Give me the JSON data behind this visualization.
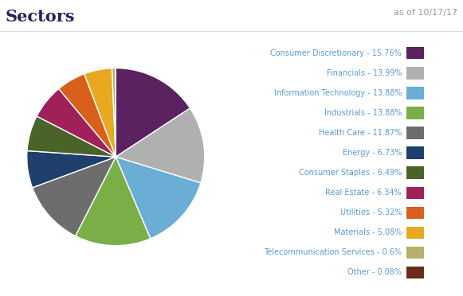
{
  "title": "Sectors",
  "subtitle": "as of 10/17/17",
  "sectors": [
    {
      "label": "Consumer Discretionary",
      "value": 15.76,
      "color": "#5C2161"
    },
    {
      "label": "Financials",
      "value": 13.99,
      "color": "#B0B0B0"
    },
    {
      "label": "Information Technology",
      "value": 13.88,
      "color": "#6AAED6"
    },
    {
      "label": "Industrials",
      "value": 13.88,
      "color": "#7AAE47"
    },
    {
      "label": "Health Care",
      "value": 11.87,
      "color": "#6D6D6D"
    },
    {
      "label": "Energy",
      "value": 6.73,
      "color": "#1F3F6D"
    },
    {
      "label": "Consumer Staples",
      "value": 6.49,
      "color": "#4A6329"
    },
    {
      "label": "Real Estate",
      "value": 6.34,
      "color": "#A0205A"
    },
    {
      "label": "Utilities",
      "value": 5.32,
      "color": "#D9601A"
    },
    {
      "label": "Materials",
      "value": 5.08,
      "color": "#E8A820"
    },
    {
      "label": "Telecommunication Services",
      "value": 0.6,
      "color": "#B8B06A"
    },
    {
      "label": "Other",
      "value": 0.08,
      "color": "#6B2C1A"
    }
  ],
  "title_color": "#2E1F5E",
  "subtitle_color": "#999999",
  "label_color": "#5B9BD5",
  "separator_color": "#DDDDDD",
  "background_color": "#FFFFFF",
  "pie_edge_color": "#FFFFFF",
  "pie_edge_width": 1.0
}
